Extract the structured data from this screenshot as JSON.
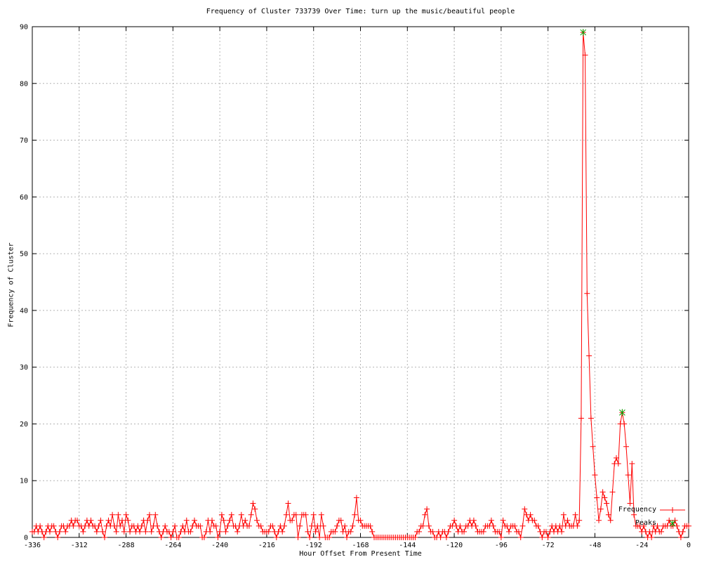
{
  "chart": {
    "title": "Frequency of Cluster 733739 Over Time: turn up the music/beautiful people",
    "xlabel": "Hour Offset From Present Time",
    "ylabel": "Frequency of Cluster"
  },
  "legend": {
    "position": "bottom-right-inside",
    "items": [
      {
        "label": "Frequency",
        "marker": "line-plus",
        "color": "#ff0000"
      },
      {
        "label": "Peaks",
        "marker": "star",
        "color": "#00a000"
      }
    ]
  },
  "colors": {
    "background": "#ffffff",
    "border": "#000000",
    "grid": "#b4b4b4",
    "frequency_line": "#ff0000",
    "peak_marker": "#00a000",
    "text": "#000000"
  },
  "chart_data": {
    "type": "line",
    "title": "Frequency of Cluster 733739 Over Time: turn up the music/beautiful people",
    "xlabel": "Hour Offset From Present Time",
    "ylabel": "Frequency of Cluster",
    "xlim": [
      -336,
      0
    ],
    "ylim": [
      0,
      90
    ],
    "xticks": [
      -336,
      -312,
      -288,
      -264,
      -240,
      -216,
      -192,
      -168,
      -144,
      -120,
      -96,
      -72,
      -48,
      -24,
      0
    ],
    "yticks": [
      0,
      10,
      20,
      30,
      40,
      50,
      60,
      70,
      80,
      90
    ],
    "grid": true,
    "legend_position": "bottom-right-inside",
    "series": [
      {
        "name": "Frequency",
        "style": "line-plus",
        "color": "#ff0000",
        "x_start": -336,
        "x_step": 1,
        "values": [
          1,
          1,
          2,
          1,
          2,
          1,
          0,
          1,
          2,
          1,
          2,
          2,
          1,
          0,
          1,
          2,
          2,
          1,
          2,
          2,
          3,
          2,
          3,
          3,
          2,
          2,
          1,
          2,
          3,
          2,
          3,
          2,
          2,
          1,
          2,
          3,
          1,
          0,
          2,
          3,
          2,
          4,
          2,
          1,
          4,
          2,
          3,
          1,
          4,
          3,
          1,
          2,
          2,
          1,
          2,
          1,
          2,
          3,
          1,
          3,
          4,
          1,
          2,
          4,
          2,
          1,
          0,
          1,
          2,
          1,
          1,
          0,
          1,
          2,
          0,
          0,
          1,
          2,
          1,
          3,
          1,
          1,
          2,
          3,
          2,
          2,
          2,
          0,
          0,
          1,
          3,
          1,
          3,
          2,
          2,
          0,
          1,
          4,
          3,
          1,
          2,
          3,
          4,
          2,
          2,
          1,
          2,
          4,
          2,
          3,
          2,
          2,
          4,
          6,
          5,
          3,
          2,
          2,
          1,
          1,
          1,
          1,
          2,
          2,
          1,
          0,
          1,
          2,
          1,
          2,
          4,
          6,
          3,
          3,
          4,
          4,
          0,
          2,
          4,
          4,
          4,
          1,
          0,
          2,
          4,
          1,
          2,
          0,
          4,
          2,
          0,
          0,
          0,
          1,
          1,
          1,
          2,
          3,
          3,
          1,
          2,
          0,
          1,
          1,
          2,
          4,
          7,
          3,
          3,
          2,
          2,
          2,
          2,
          2,
          1,
          0,
          0,
          0,
          0,
          0,
          0,
          0,
          0,
          0,
          0,
          0,
          0,
          0,
          0,
          0,
          0,
          0,
          0,
          0,
          0,
          0,
          0,
          1,
          1,
          2,
          2,
          4,
          5,
          2,
          1,
          1,
          0,
          0,
          1,
          0,
          1,
          1,
          0,
          1,
          2,
          2,
          3,
          2,
          1,
          2,
          1,
          1,
          2,
          2,
          3,
          2,
          3,
          2,
          1,
          1,
          1,
          1,
          2,
          2,
          2,
          3,
          2,
          1,
          1,
          1,
          0,
          3,
          2,
          2,
          1,
          2,
          2,
          2,
          1,
          1,
          0,
          2,
          5,
          4,
          3,
          4,
          3,
          3,
          2,
          2,
          1,
          0,
          1,
          1,
          0,
          1,
          2,
          1,
          2,
          1,
          2,
          1,
          4,
          2,
          3,
          2,
          2,
          2,
          4,
          2,
          3,
          21,
          89,
          85,
          43,
          32,
          21,
          16,
          11,
          7,
          3,
          5,
          8,
          7,
          6,
          4,
          3,
          8,
          13,
          14,
          13,
          20,
          22,
          20,
          16,
          11,
          6,
          13,
          4,
          2,
          2,
          2,
          1,
          2,
          1,
          0,
          1,
          0,
          2,
          1,
          2,
          1,
          1,
          2,
          2,
          2,
          3,
          2,
          2,
          3,
          2,
          1,
          0,
          1,
          2,
          2,
          2
        ]
      },
      {
        "name": "Peaks",
        "style": "points-star",
        "color": "#00a000",
        "points": [
          [
            -54,
            89
          ],
          [
            -34,
            22
          ]
        ]
      }
    ]
  }
}
